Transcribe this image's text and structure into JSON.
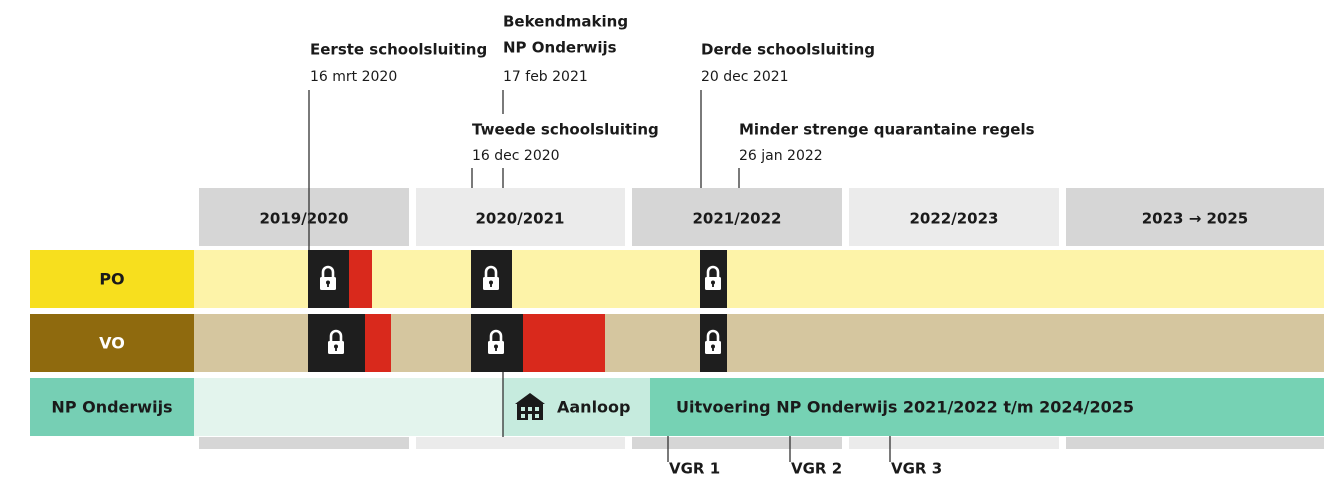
{
  "events": [
    {
      "title": [
        "Eerste schoolsluiting"
      ],
      "date": "16 mrt 2020"
    },
    {
      "title": [
        "Bekendmaking",
        "NP Onderwijs"
      ],
      "date": "17 feb 2021"
    },
    {
      "title": [
        "Tweede schoolsluiting"
      ],
      "date": "16 dec 2020"
    },
    {
      "title": [
        "Derde schoolsluiting"
      ],
      "date": "20 dec 2021"
    },
    {
      "title": [
        "Minder strenge quarantaine regels"
      ],
      "date": "26 jan 2022"
    }
  ],
  "years": [
    "2019/2020",
    "2020/2021",
    "2021/2022",
    "2022/2023",
    "2023 → 2025"
  ],
  "rows": [
    "PO",
    "VO",
    "NP Onderwijs"
  ],
  "np_phases": [
    "Aanloop",
    "Uitvoering NP Onderwijs 2021/2022 t/m 2024/2025"
  ],
  "milestones": [
    "VGR 1",
    "VGR 2",
    "VGR 3"
  ]
}
